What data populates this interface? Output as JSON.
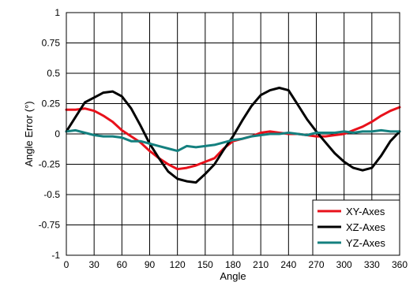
{
  "chart_data": {
    "type": "line",
    "xlabel": "Angle",
    "ylabel": "Angle Error (°)",
    "xlim": [
      0,
      360
    ],
    "ylim": [
      -1,
      1
    ],
    "x_ticks": [
      0,
      30,
      60,
      90,
      120,
      150,
      180,
      210,
      240,
      270,
      300,
      330,
      360
    ],
    "y_ticks": [
      1,
      0.75,
      0.5,
      0.25,
      0,
      -0.25,
      -0.5,
      -0.75,
      -1
    ],
    "y_tick_labels": [
      "1",
      "0.75",
      "0.5",
      "0.25",
      "0",
      "-0.25",
      "-0.5",
      "-0.75",
      "-1"
    ],
    "grid": true,
    "legend_position": "bottom-right",
    "series": [
      {
        "name": "XY-Axes",
        "color": "#e8111b",
        "x": [
          0,
          10,
          20,
          30,
          40,
          50,
          60,
          70,
          80,
          90,
          100,
          110,
          120,
          130,
          140,
          150,
          160,
          170,
          180,
          190,
          200,
          210,
          220,
          230,
          240,
          250,
          260,
          270,
          280,
          290,
          300,
          310,
          320,
          330,
          340,
          350,
          360
        ],
        "y": [
          0.2,
          0.2,
          0.21,
          0.19,
          0.15,
          0.1,
          0.03,
          -0.02,
          -0.07,
          -0.14,
          -0.2,
          -0.25,
          -0.29,
          -0.28,
          -0.26,
          -0.23,
          -0.2,
          -0.12,
          -0.06,
          -0.04,
          -0.02,
          0.01,
          0.02,
          0.01,
          0.0,
          0.0,
          -0.01,
          -0.02,
          -0.02,
          -0.01,
          0.0,
          0.03,
          0.06,
          0.1,
          0.15,
          0.19,
          0.22
        ]
      },
      {
        "name": "XZ-Axes",
        "color": "#000000",
        "x": [
          0,
          10,
          20,
          30,
          40,
          50,
          60,
          70,
          80,
          90,
          100,
          110,
          120,
          130,
          140,
          150,
          160,
          170,
          180,
          190,
          200,
          210,
          220,
          230,
          240,
          250,
          260,
          270,
          280,
          290,
          300,
          310,
          320,
          330,
          340,
          350,
          360
        ],
        "y": [
          0.02,
          0.14,
          0.26,
          0.3,
          0.34,
          0.35,
          0.31,
          0.21,
          0.07,
          -0.08,
          -0.2,
          -0.31,
          -0.37,
          -0.39,
          -0.4,
          -0.33,
          -0.25,
          -0.13,
          -0.02,
          0.11,
          0.23,
          0.32,
          0.36,
          0.38,
          0.36,
          0.24,
          0.12,
          0.02,
          -0.07,
          -0.16,
          -0.23,
          -0.28,
          -0.3,
          -0.28,
          -0.18,
          -0.06,
          0.02
        ]
      },
      {
        "name": "YZ-Axes",
        "color": "#14807f",
        "x": [
          0,
          10,
          20,
          30,
          40,
          50,
          60,
          70,
          80,
          90,
          100,
          110,
          120,
          130,
          140,
          150,
          160,
          170,
          180,
          190,
          200,
          210,
          220,
          230,
          240,
          250,
          260,
          270,
          280,
          290,
          300,
          310,
          320,
          330,
          340,
          350,
          360
        ],
        "y": [
          0.02,
          0.03,
          0.01,
          -0.01,
          -0.02,
          -0.02,
          -0.03,
          -0.06,
          -0.06,
          -0.08,
          -0.1,
          -0.12,
          -0.14,
          -0.1,
          -0.11,
          -0.1,
          -0.09,
          -0.07,
          -0.05,
          -0.04,
          -0.02,
          -0.01,
          0.0,
          0.0,
          0.01,
          0.0,
          -0.01,
          0.01,
          0.01,
          0.01,
          0.02,
          0.01,
          0.02,
          0.02,
          0.03,
          0.02,
          0.02
        ]
      }
    ]
  }
}
